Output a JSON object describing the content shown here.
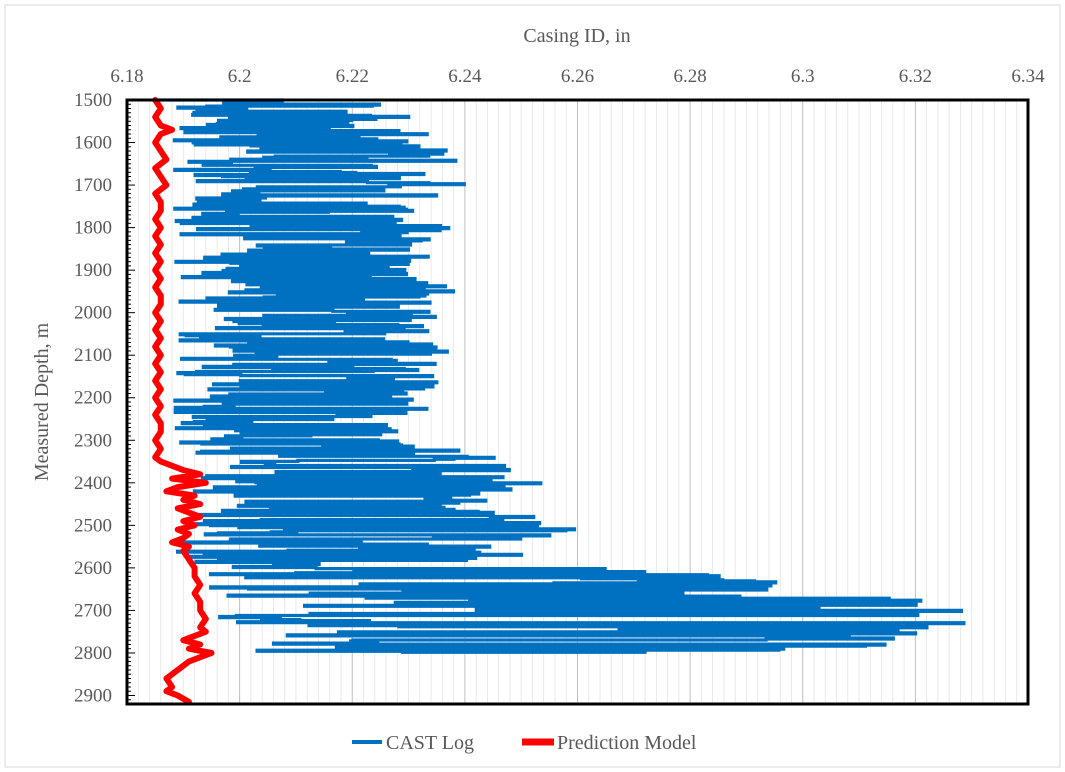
{
  "chart_data": {
    "type": "line",
    "title": "",
    "xlabel": "Casing ID, in",
    "ylabel": "Measured Depth, m",
    "x_axis_position": "top",
    "y_axis_inverted": true,
    "xlim": [
      6.18,
      6.34
    ],
    "ylim": [
      1500,
      2920
    ],
    "x_ticks": [
      "6.18",
      "6.2",
      "6.22",
      "6.24",
      "6.26",
      "6.28",
      "6.3",
      "6.32",
      "6.34"
    ],
    "y_ticks": [
      "1500",
      "1600",
      "1700",
      "1800",
      "1900",
      "2000",
      "2100",
      "2200",
      "2300",
      "2400",
      "2500",
      "2600",
      "2700",
      "2800",
      "2900"
    ],
    "grid": "vertical",
    "legend_position": "bottom",
    "series": [
      {
        "name": "CAST Log",
        "color": "#0070C0",
        "style": "stepped-horizontal-excursions",
        "envelope": [
          {
            "depth": 1500,
            "min": 6.185,
            "max": 6.226
          },
          {
            "depth": 1550,
            "min": 6.185,
            "max": 6.233
          },
          {
            "depth": 1600,
            "min": 6.186,
            "max": 6.236
          },
          {
            "depth": 1650,
            "min": 6.185,
            "max": 6.24
          },
          {
            "depth": 1700,
            "min": 6.186,
            "max": 6.24
          },
          {
            "depth": 1750,
            "min": 6.186,
            "max": 6.23
          },
          {
            "depth": 1800,
            "min": 6.185,
            "max": 6.238
          },
          {
            "depth": 1850,
            "min": 6.186,
            "max": 6.236
          },
          {
            "depth": 1900,
            "min": 6.186,
            "max": 6.23
          },
          {
            "depth": 1950,
            "min": 6.186,
            "max": 6.239
          },
          {
            "depth": 2000,
            "min": 6.186,
            "max": 6.236
          },
          {
            "depth": 2050,
            "min": 6.186,
            "max": 6.233
          },
          {
            "depth": 2100,
            "min": 6.186,
            "max": 6.24
          },
          {
            "depth": 2150,
            "min": 6.186,
            "max": 6.235
          },
          {
            "depth": 2200,
            "min": 6.185,
            "max": 6.239
          },
          {
            "depth": 2250,
            "min": 6.186,
            "max": 6.228
          },
          {
            "depth": 2300,
            "min": 6.185,
            "max": 6.229
          },
          {
            "depth": 2350,
            "min": 6.185,
            "max": 6.252
          },
          {
            "depth": 2400,
            "min": 6.186,
            "max": 6.262
          },
          {
            "depth": 2450,
            "min": 6.186,
            "max": 6.24
          },
          {
            "depth": 2500,
            "min": 6.185,
            "max": 6.266
          },
          {
            "depth": 2550,
            "min": 6.185,
            "max": 6.244
          },
          {
            "depth": 2600,
            "min": 6.186,
            "max": 6.266
          },
          {
            "depth": 2650,
            "min": 6.187,
            "max": 6.321
          },
          {
            "depth": 2700,
            "min": 6.188,
            "max": 6.329
          },
          {
            "depth": 2750,
            "min": 6.191,
            "max": 6.33
          },
          {
            "depth": 2800,
            "min": 6.191,
            "max": 6.305
          }
        ]
      },
      {
        "name": "Prediction Model",
        "color": "#FF0000",
        "points": [
          {
            "x": 6.185,
            "y": 1500
          },
          {
            "x": 6.186,
            "y": 1520
          },
          {
            "x": 6.185,
            "y": 1540
          },
          {
            "x": 6.186,
            "y": 1560
          },
          {
            "x": 6.188,
            "y": 1570
          },
          {
            "x": 6.186,
            "y": 1580
          },
          {
            "x": 6.185,
            "y": 1600
          },
          {
            "x": 6.186,
            "y": 1620
          },
          {
            "x": 6.187,
            "y": 1640
          },
          {
            "x": 6.185,
            "y": 1660
          },
          {
            "x": 6.186,
            "y": 1680
          },
          {
            "x": 6.187,
            "y": 1700
          },
          {
            "x": 6.185,
            "y": 1720
          },
          {
            "x": 6.186,
            "y": 1740
          },
          {
            "x": 6.186,
            "y": 1760
          },
          {
            "x": 6.185,
            "y": 1780
          },
          {
            "x": 6.186,
            "y": 1800
          },
          {
            "x": 6.185,
            "y": 1820
          },
          {
            "x": 6.186,
            "y": 1840
          },
          {
            "x": 6.185,
            "y": 1860
          },
          {
            "x": 6.186,
            "y": 1880
          },
          {
            "x": 6.185,
            "y": 1900
          },
          {
            "x": 6.186,
            "y": 1920
          },
          {
            "x": 6.185,
            "y": 1940
          },
          {
            "x": 6.186,
            "y": 1960
          },
          {
            "x": 6.186,
            "y": 1980
          },
          {
            "x": 6.185,
            "y": 2000
          },
          {
            "x": 6.186,
            "y": 2020
          },
          {
            "x": 6.185,
            "y": 2040
          },
          {
            "x": 6.186,
            "y": 2060
          },
          {
            "x": 6.185,
            "y": 2080
          },
          {
            "x": 6.186,
            "y": 2100
          },
          {
            "x": 6.185,
            "y": 2120
          },
          {
            "x": 6.186,
            "y": 2140
          },
          {
            "x": 6.185,
            "y": 2160
          },
          {
            "x": 6.186,
            "y": 2180
          },
          {
            "x": 6.185,
            "y": 2200
          },
          {
            "x": 6.186,
            "y": 2220
          },
          {
            "x": 6.185,
            "y": 2240
          },
          {
            "x": 6.186,
            "y": 2260
          },
          {
            "x": 6.186,
            "y": 2280
          },
          {
            "x": 6.185,
            "y": 2300
          },
          {
            "x": 6.186,
            "y": 2320
          },
          {
            "x": 6.185,
            "y": 2340
          },
          {
            "x": 6.186,
            "y": 2350
          },
          {
            "x": 6.19,
            "y": 2370
          },
          {
            "x": 6.193,
            "y": 2380
          },
          {
            "x": 6.188,
            "y": 2390
          },
          {
            "x": 6.194,
            "y": 2400
          },
          {
            "x": 6.189,
            "y": 2410
          },
          {
            "x": 6.187,
            "y": 2420
          },
          {
            "x": 6.192,
            "y": 2430
          },
          {
            "x": 6.19,
            "y": 2440
          },
          {
            "x": 6.193,
            "y": 2450
          },
          {
            "x": 6.189,
            "y": 2460
          },
          {
            "x": 6.191,
            "y": 2470
          },
          {
            "x": 6.193,
            "y": 2480
          },
          {
            "x": 6.19,
            "y": 2490
          },
          {
            "x": 6.192,
            "y": 2500
          },
          {
            "x": 6.189,
            "y": 2510
          },
          {
            "x": 6.191,
            "y": 2520
          },
          {
            "x": 6.19,
            "y": 2530
          },
          {
            "x": 6.188,
            "y": 2540
          },
          {
            "x": 6.191,
            "y": 2550
          },
          {
            "x": 6.19,
            "y": 2560
          },
          {
            "x": 6.191,
            "y": 2580
          },
          {
            "x": 6.192,
            "y": 2600
          },
          {
            "x": 6.192,
            "y": 2620
          },
          {
            "x": 6.193,
            "y": 2640
          },
          {
            "x": 6.192,
            "y": 2660
          },
          {
            "x": 6.193,
            "y": 2680
          },
          {
            "x": 6.193,
            "y": 2700
          },
          {
            "x": 6.194,
            "y": 2720
          },
          {
            "x": 6.193,
            "y": 2740
          },
          {
            "x": 6.194,
            "y": 2750
          },
          {
            "x": 6.192,
            "y": 2760
          },
          {
            "x": 6.19,
            "y": 2770
          },
          {
            "x": 6.193,
            "y": 2780
          },
          {
            "x": 6.191,
            "y": 2790
          },
          {
            "x": 6.195,
            "y": 2800
          },
          {
            "x": 6.193,
            "y": 2810
          },
          {
            "x": 6.191,
            "y": 2820
          },
          {
            "x": 6.189,
            "y": 2840
          },
          {
            "x": 6.187,
            "y": 2860
          },
          {
            "x": 6.188,
            "y": 2880
          },
          {
            "x": 6.187,
            "y": 2890
          },
          {
            "x": 6.189,
            "y": 2900
          },
          {
            "x": 6.191,
            "y": 2915
          }
        ]
      }
    ]
  }
}
